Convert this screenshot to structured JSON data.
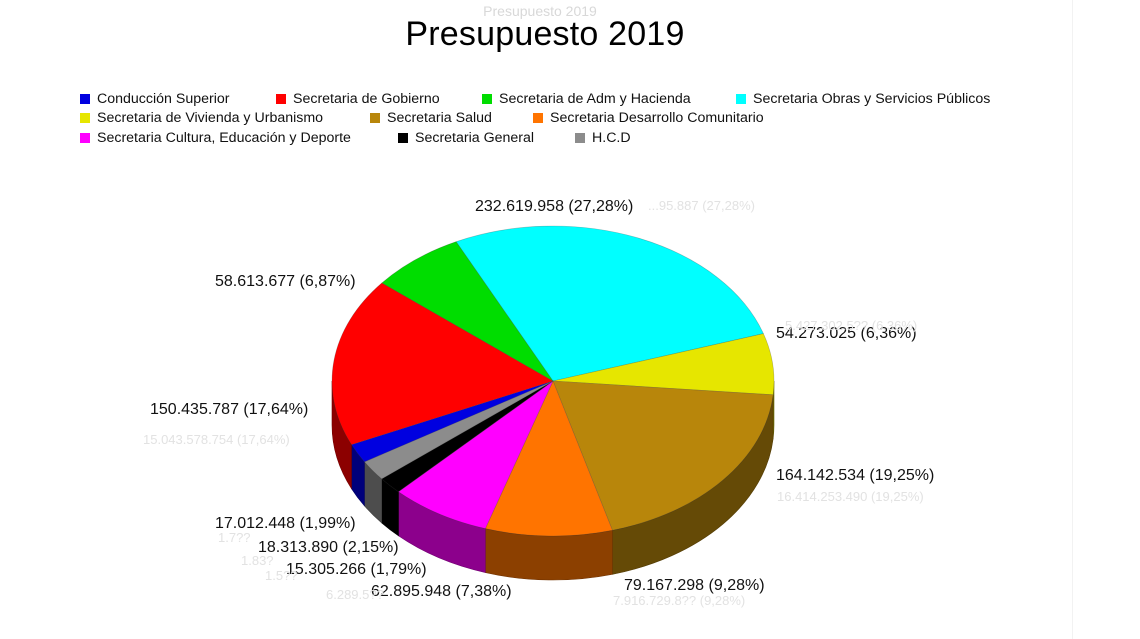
{
  "chart_data": {
    "type": "pie",
    "title": "Presupuesto 2019",
    "ghost_title": "Presupuesto 2019",
    "legend": "top",
    "legend_rows": [
      [
        "Conducción Superior",
        "Secretaria de Gobierno",
        "Secretaria de Adm y Hacienda",
        "Secretaria Obras y Servicios Públicos"
      ],
      [
        "Secretaria de Vivienda y Urbanismo",
        "Secretaria Salud",
        "Secretaria Desarrollo Comunitario"
      ],
      [
        "Secretaria Cultura, Educación y Deporte",
        "Secretaria General",
        "H.C.D"
      ]
    ],
    "slices": [
      {
        "name": "Secretaria Obras y Servicios Públicos",
        "value": 232619958,
        "percent": 27.28,
        "color": "#00FFFF",
        "label": "232.619.958 (27,28%)"
      },
      {
        "name": "Secretaria de Vivienda y Urbanismo",
        "value": 54273025,
        "percent": 6.36,
        "color": "#E6E600",
        "label": "54.273.025 (6,36%)"
      },
      {
        "name": "Secretaria Salud",
        "value": 164142534,
        "percent": 19.25,
        "color": "#B8860B",
        "label": "164.142.534 (19,25%)"
      },
      {
        "name": "Secretaria Desarrollo Comunitario",
        "value": 79167298,
        "percent": 9.28,
        "color": "#FF7400",
        "label": "79.167.298 (9,28%)"
      },
      {
        "name": "Secretaria Cultura, Educación y Deporte",
        "value": 62895948,
        "percent": 7.38,
        "color": "#FF00FF",
        "label": "62.895.948 (7,38%)"
      },
      {
        "name": "Secretaria General",
        "value": 15305266,
        "percent": 1.79,
        "color": "#000000",
        "label": "15.305.266 (1,79%)"
      },
      {
        "name": "H.C.D",
        "value": 18313890,
        "percent": 2.15,
        "color": "#8C8C8C",
        "label": "18.313.890 (2,15%)"
      },
      {
        "name": "Conducción Superior",
        "value": 17012448,
        "percent": 1.99,
        "color": "#0000E0",
        "label": "17.012.448 (1,99%)"
      },
      {
        "name": "Secretaria de Gobierno",
        "value": 150435787,
        "percent": 17.64,
        "color": "#FF0000",
        "label": "150.435.787 (17,64%)"
      },
      {
        "name": "Secretaria de Adm y Hacienda",
        "value": 58613677,
        "percent": 6.87,
        "color": "#00DD00",
        "label": "58.613.677 (6,87%)"
      }
    ],
    "ghost_labels": [
      "...95.887 (27,28%)",
      "5.427.302.5?? (6,36%)",
      "15.043.578.754 (17,64%)",
      "16.414.253.490 (19,25%)",
      "7.916.729.8?? (9,28%)",
      "6.289.5??",
      "1.7??",
      "1.83?",
      "1.5??"
    ]
  }
}
